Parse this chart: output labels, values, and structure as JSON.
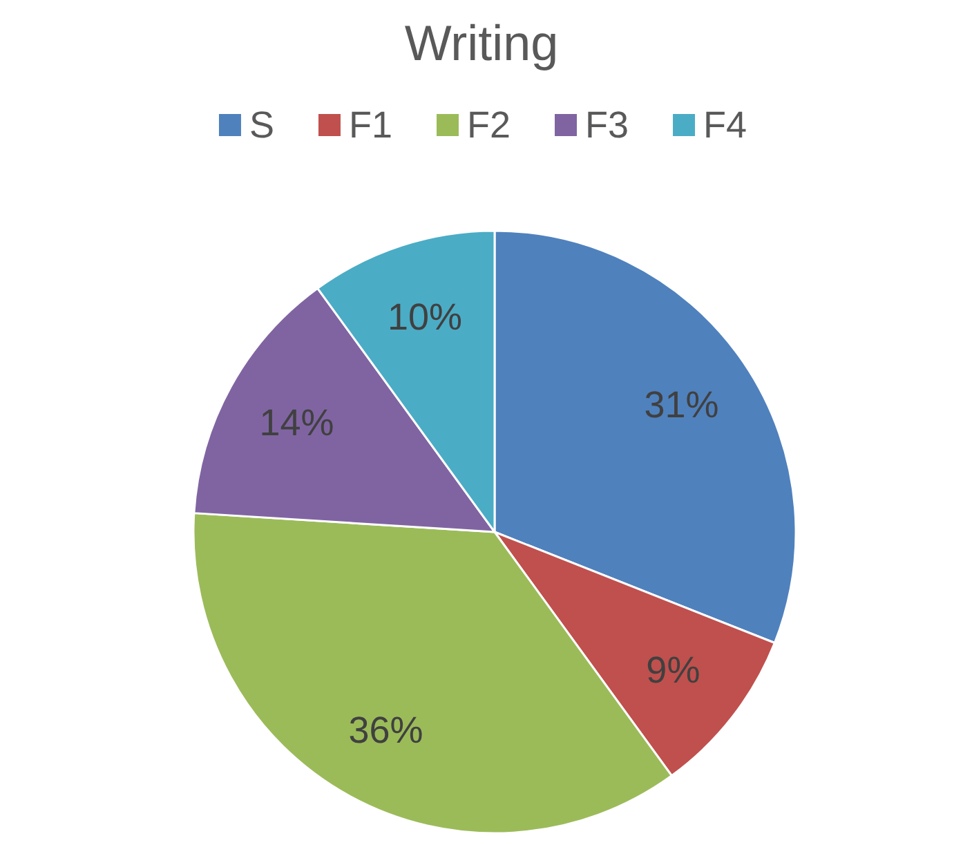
{
  "chart_data": {
    "type": "pie",
    "title": "Writing",
    "categories": [
      "S",
      "F1",
      "F2",
      "F3",
      "F4"
    ],
    "values": [
      31,
      9,
      36,
      14,
      10
    ],
    "value_labels": [
      "31%",
      "9%",
      "36%",
      "14%",
      "10%"
    ],
    "colors": [
      "#4f81bd",
      "#c0504d",
      "#9bbb59",
      "#8064a2",
      "#4bacc6"
    ],
    "legend": "top"
  }
}
